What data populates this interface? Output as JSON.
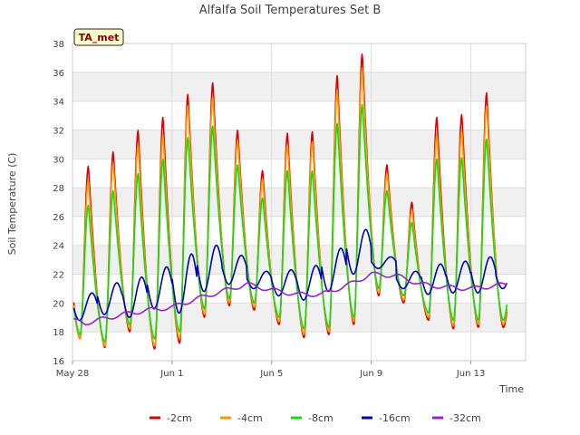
{
  "chart_data": {
    "type": "line",
    "title": "Alfalfa Soil Temperatures Set B",
    "xlabel": "Time",
    "ylabel": "Soil Temperature (C)",
    "badge": "TA_met",
    "ylim": [
      16,
      38
    ],
    "yticks": [
      16,
      18,
      20,
      22,
      24,
      26,
      28,
      30,
      32,
      34,
      36,
      38
    ],
    "xlim": [
      0,
      18.2
    ],
    "xticks": [
      {
        "label": "May 28",
        "day": 0
      },
      {
        "label": "Jun 1",
        "day": 4
      },
      {
        "label": "Jun 5",
        "day": 8
      },
      {
        "label": "Jun 9",
        "day": 12
      },
      {
        "label": "Jun 13",
        "day": 16
      }
    ],
    "grid": true,
    "legend_position": "bottom",
    "daily_extremes": {
      "day": [
        0,
        1,
        2,
        3,
        4,
        5,
        6,
        7,
        8,
        9,
        10,
        11,
        12,
        13,
        14,
        15,
        16,
        17
      ],
      "minus2cm": {
        "min": [
          17.5,
          16.9,
          18.0,
          16.8,
          17.2,
          19.0,
          19.8,
          19.5,
          18.5,
          17.6,
          17.8,
          18.5,
          20.5,
          20.0,
          18.8,
          18.2,
          18.3,
          18.3
        ],
        "max": [
          29.5,
          30.5,
          32.0,
          32.9,
          34.5,
          35.3,
          32.0,
          29.2,
          31.8,
          31.9,
          35.8,
          37.3,
          29.6,
          27.0,
          32.9,
          33.1,
          34.6,
          21.0
        ]
      },
      "minus4cm": {
        "min": [
          17.5,
          17.0,
          18.2,
          17.0,
          17.5,
          19.2,
          20.0,
          19.7,
          18.7,
          17.8,
          18.0,
          18.7,
          20.7,
          20.2,
          19.0,
          18.4,
          18.5,
          18.5
        ],
        "max": [
          28.5,
          29.7,
          31.0,
          31.7,
          33.7,
          34.3,
          31.3,
          28.6,
          31.0,
          31.2,
          34.8,
          36.3,
          29.0,
          26.5,
          31.7,
          32.0,
          33.7,
          21.2
        ]
      },
      "minus8cm": {
        "min": [
          17.8,
          17.3,
          18.5,
          17.5,
          18.0,
          19.6,
          20.3,
          20.0,
          19.0,
          18.2,
          18.3,
          19.0,
          21.0,
          20.5,
          19.3,
          18.8,
          18.8,
          18.8
        ],
        "max": [
          26.8,
          27.8,
          29.0,
          30.0,
          31.5,
          32.3,
          29.6,
          27.3,
          29.2,
          29.2,
          32.5,
          33.8,
          27.8,
          25.6,
          30.0,
          30.1,
          31.4,
          21.5
        ]
      }
    },
    "series": [
      {
        "name": "-2cm",
        "color": "#dd0000"
      },
      {
        "name": "-4cm",
        "color": "#ff9900"
      },
      {
        "name": "-8cm",
        "color": "#11dd11"
      },
      {
        "name": "-16cm",
        "color": "#0000bb"
      },
      {
        "name": "-32cm",
        "color": "#9922cc"
      }
    ]
  }
}
